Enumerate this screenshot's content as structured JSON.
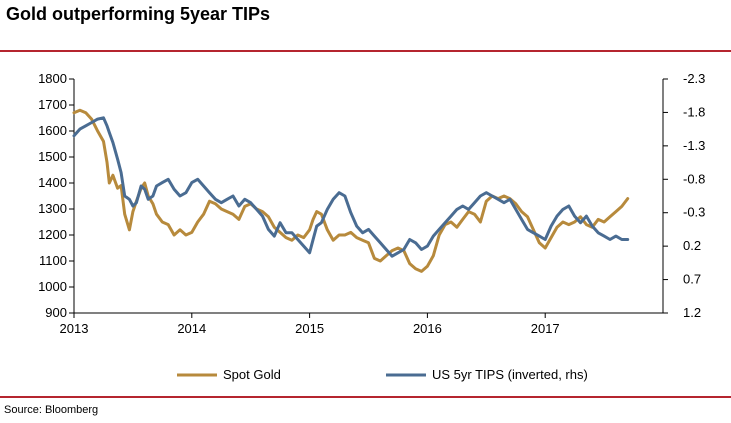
{
  "title": "Gold outperforming 5year TIPs",
  "source": "Source: Bloomberg",
  "colors": {
    "rule": "#b5252f",
    "gold": "#b78a3c",
    "tips": "#4a6c92"
  },
  "chart_data": {
    "type": "line",
    "title": "Gold outperforming 5year TIPs",
    "x_ticks": [
      "2013",
      "2014",
      "2015",
      "2016",
      "2017"
    ],
    "x_range": [
      2013.0,
      2018.0
    ],
    "left_axis": {
      "ticks": [
        "1800",
        "1700",
        "1600",
        "1500",
        "1400",
        "1300",
        "1200",
        "1100",
        "1000",
        "900"
      ],
      "ylim": [
        900,
        1800
      ]
    },
    "right_axis": {
      "ticks": [
        "-2.3",
        "-1.8",
        "-1.3",
        "-0.8",
        "-0.3",
        "0.2",
        "0.7",
        "1.2"
      ],
      "ylim": [
        -2.3,
        1.2
      ],
      "inverted": true
    },
    "series": [
      {
        "name": "Spot Gold",
        "axis": "left",
        "x": [
          2013.0,
          2013.05,
          2013.1,
          2013.15,
          2013.2,
          2013.25,
          2013.28,
          2013.3,
          2013.33,
          2013.37,
          2013.4,
          2013.43,
          2013.47,
          2013.5,
          2013.53,
          2013.57,
          2013.6,
          2013.63,
          2013.67,
          2013.7,
          2013.75,
          2013.8,
          2013.85,
          2013.9,
          2013.95,
          2014.0,
          2014.05,
          2014.1,
          2014.15,
          2014.2,
          2014.25,
          2014.3,
          2014.35,
          2014.4,
          2014.45,
          2014.5,
          2014.55,
          2014.6,
          2014.65,
          2014.7,
          2014.75,
          2014.8,
          2014.85,
          2014.9,
          2014.95,
          2015.0,
          2015.03,
          2015.06,
          2015.1,
          2015.15,
          2015.2,
          2015.25,
          2015.3,
          2015.35,
          2015.4,
          2015.45,
          2015.5,
          2015.55,
          2015.6,
          2015.65,
          2015.7,
          2015.75,
          2015.8,
          2015.85,
          2015.9,
          2015.95,
          2016.0,
          2016.05,
          2016.1,
          2016.15,
          2016.2,
          2016.25,
          2016.3,
          2016.35,
          2016.4,
          2016.45,
          2016.5,
          2016.55,
          2016.6,
          2016.65,
          2016.7,
          2016.75,
          2016.8,
          2016.85,
          2016.9,
          2016.95,
          2017.0,
          2017.05,
          2017.1,
          2017.15,
          2017.2,
          2017.25,
          2017.3,
          2017.35,
          2017.4,
          2017.45,
          2017.5,
          2017.55,
          2017.6,
          2017.65,
          2017.7
        ],
        "values": [
          1670,
          1680,
          1670,
          1645,
          1600,
          1560,
          1480,
          1400,
          1430,
          1380,
          1390,
          1280,
          1220,
          1290,
          1330,
          1380,
          1400,
          1350,
          1320,
          1280,
          1250,
          1240,
          1200,
          1220,
          1200,
          1210,
          1250,
          1280,
          1330,
          1320,
          1300,
          1290,
          1280,
          1260,
          1310,
          1320,
          1300,
          1290,
          1270,
          1230,
          1210,
          1190,
          1180,
          1200,
          1190,
          1220,
          1260,
          1290,
          1280,
          1220,
          1180,
          1200,
          1200,
          1210,
          1190,
          1180,
          1170,
          1110,
          1100,
          1120,
          1140,
          1150,
          1140,
          1090,
          1070,
          1060,
          1080,
          1120,
          1200,
          1240,
          1250,
          1230,
          1260,
          1290,
          1280,
          1250,
          1330,
          1350,
          1340,
          1350,
          1340,
          1320,
          1290,
          1270,
          1220,
          1170,
          1150,
          1190,
          1230,
          1250,
          1240,
          1250,
          1270,
          1240,
          1230,
          1260,
          1250,
          1270,
          1290,
          1310,
          1340
        ]
      },
      {
        "name": "US 5yr TIPS (inverted, rhs)",
        "axis": "right",
        "x": [
          2013.0,
          2013.05,
          2013.1,
          2013.15,
          2013.2,
          2013.25,
          2013.28,
          2013.3,
          2013.33,
          2013.37,
          2013.4,
          2013.43,
          2013.47,
          2013.5,
          2013.53,
          2013.57,
          2013.6,
          2013.63,
          2013.67,
          2013.7,
          2013.75,
          2013.8,
          2013.85,
          2013.9,
          2013.95,
          2014.0,
          2014.05,
          2014.1,
          2014.15,
          2014.2,
          2014.25,
          2014.3,
          2014.35,
          2014.4,
          2014.45,
          2014.5,
          2014.55,
          2014.6,
          2014.65,
          2014.7,
          2014.75,
          2014.8,
          2014.85,
          2014.9,
          2014.95,
          2015.0,
          2015.03,
          2015.06,
          2015.1,
          2015.15,
          2015.2,
          2015.25,
          2015.3,
          2015.35,
          2015.4,
          2015.45,
          2015.5,
          2015.55,
          2015.6,
          2015.65,
          2015.7,
          2015.75,
          2015.8,
          2015.85,
          2015.9,
          2015.95,
          2016.0,
          2016.05,
          2016.1,
          2016.15,
          2016.2,
          2016.25,
          2016.3,
          2016.35,
          2016.4,
          2016.45,
          2016.5,
          2016.55,
          2016.6,
          2016.65,
          2016.7,
          2016.75,
          2016.8,
          2016.85,
          2016.9,
          2016.95,
          2017.0,
          2017.05,
          2017.1,
          2017.15,
          2017.2,
          2017.25,
          2017.3,
          2017.35,
          2017.4,
          2017.45,
          2017.5,
          2017.55,
          2017.6,
          2017.65,
          2017.7
        ],
        "values": [
          -1.45,
          -1.55,
          -1.6,
          -1.65,
          -1.7,
          -1.72,
          -1.6,
          -1.5,
          -1.35,
          -1.1,
          -0.9,
          -0.55,
          -0.5,
          -0.4,
          -0.45,
          -0.7,
          -0.65,
          -0.5,
          -0.55,
          -0.7,
          -0.75,
          -0.8,
          -0.65,
          -0.55,
          -0.6,
          -0.75,
          -0.8,
          -0.7,
          -0.6,
          -0.5,
          -0.45,
          -0.5,
          -0.55,
          -0.4,
          -0.5,
          -0.45,
          -0.35,
          -0.25,
          -0.05,
          0.05,
          -0.15,
          0.0,
          0.0,
          0.1,
          0.2,
          0.3,
          0.1,
          -0.1,
          -0.15,
          -0.35,
          -0.5,
          -0.6,
          -0.55,
          -0.3,
          -0.1,
          0.0,
          -0.05,
          0.05,
          0.15,
          0.25,
          0.35,
          0.3,
          0.25,
          0.1,
          0.15,
          0.25,
          0.2,
          0.05,
          -0.05,
          -0.15,
          -0.25,
          -0.35,
          -0.4,
          -0.35,
          -0.45,
          -0.55,
          -0.6,
          -0.55,
          -0.5,
          -0.45,
          -0.5,
          -0.35,
          -0.2,
          -0.05,
          0.0,
          0.05,
          0.1,
          -0.1,
          -0.25,
          -0.35,
          -0.4,
          -0.25,
          -0.15,
          -0.25,
          -0.1,
          0.0,
          0.05,
          0.1,
          0.05,
          0.1,
          0.1
        ]
      }
    ],
    "legend": [
      "Spot Gold",
      "US 5yr TIPS (inverted, rhs)"
    ],
    "legend_position": "bottom"
  }
}
